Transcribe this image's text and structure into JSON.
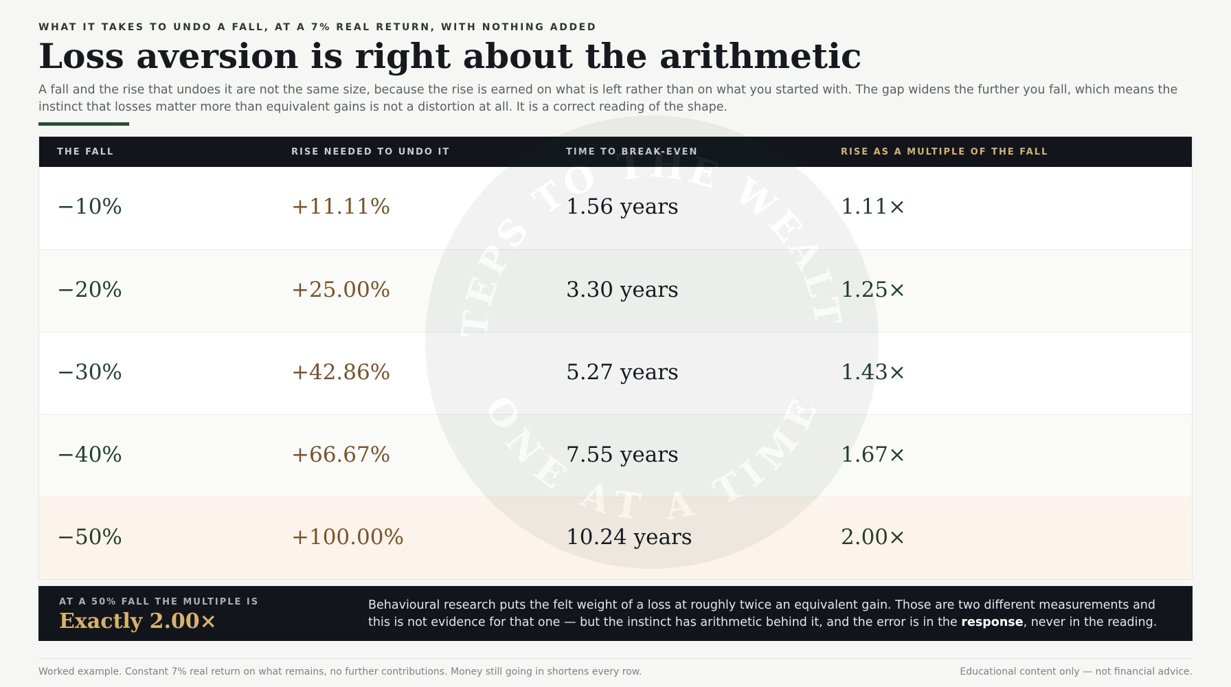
{
  "header": {
    "eyebrow": "WHAT IT TAKES TO UNDO A FALL, AT A 7% REAL RETURN, WITH NOTHING ADDED",
    "title": "Loss aversion is right about the arithmetic",
    "intro": "A fall and the rise that undoes it are not the same size, because the rise is earned on what is left rather than on what you started with. The gap widens the further you fall, which means the instinct that losses matter more than equivalent gains is not a distortion at all. It is a correct reading of the shape."
  },
  "watermark": {
    "top": "STEPS TO THE WEALTH",
    "bottom": "ONE AT A TIME"
  },
  "table": {
    "headers": [
      "THE FALL",
      "RISE NEEDED TO UNDO IT",
      "TIME TO BREAK-EVEN",
      "RISE AS A MULTIPLE OF THE FALL"
    ],
    "rows": [
      [
        "−10%",
        "+11.11%",
        "1.56 years",
        "1.11×"
      ],
      [
        "−20%",
        "+25.00%",
        "3.30 years",
        "1.25×"
      ],
      [
        "−30%",
        "+42.86%",
        "5.27 years",
        "1.43×"
      ],
      [
        "−40%",
        "+66.67%",
        "7.55 years",
        "1.67×"
      ],
      [
        "−50%",
        "+100.00%",
        "10.24 years",
        "2.00×"
      ]
    ]
  },
  "callout": {
    "label": "AT A 50% FALL THE MULTIPLE IS",
    "value": "Exactly 2.00×",
    "text_before": "Behavioural research puts the felt weight of a loss at roughly twice an equivalent gain. Those are two different measurements and this is not evidence for that one — but the instinct has arithmetic behind it, and the error is in the ",
    "text_bold": "response",
    "text_after": ", never in the reading."
  },
  "footer": {
    "left": "Worked example. Constant 7% real return on what remains, no further contributions. Money still going in shortens every row.",
    "right": "Educational content only — not financial advice."
  }
}
